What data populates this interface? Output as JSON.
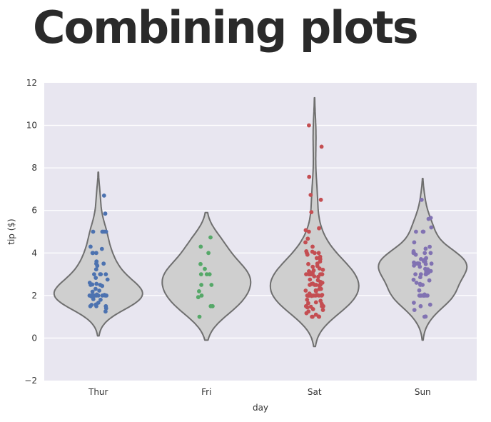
{
  "page": {
    "title": "Combining plots"
  },
  "colors": {
    "plot_background": "#e8e6f0",
    "grid": "#ffffff",
    "violin_fill": "#cfcfcf",
    "violin_stroke": "#6f6f6f"
  },
  "chart_data": {
    "type": "violin+strip",
    "xlabel": "day",
    "ylabel": "tip ($)",
    "ylim": [
      -2,
      12
    ],
    "yticks": [
      -2,
      0,
      2,
      4,
      6,
      8,
      10,
      12
    ],
    "grid": true,
    "categories": [
      "Thur",
      "Fri",
      "Sat",
      "Sun"
    ],
    "series": [
      {
        "category": "Thur",
        "color": "#4c72b0",
        "violin_extent": [
          0.1,
          7.8
        ],
        "points": [
          1.25,
          1.4,
          1.5,
          1.5,
          1.5,
          1.56,
          1.58,
          1.66,
          1.8,
          1.83,
          1.96,
          2.0,
          2.0,
          2.0,
          2.0,
          2.0,
          2.0,
          2.0,
          2.0,
          2.0,
          2.0,
          2.0,
          2.01,
          2.03,
          2.05,
          2.18,
          2.23,
          2.31,
          2.45,
          2.5,
          2.5,
          2.52,
          2.55,
          2.6,
          2.75,
          2.83,
          3.0,
          3.0,
          3.0,
          3.0,
          3.23,
          3.4,
          3.5,
          3.5,
          3.6,
          4.0,
          4.0,
          4.0,
          4.19,
          4.3,
          5.0,
          5.0,
          5.0,
          5.0,
          5.85,
          6.7
        ]
      },
      {
        "category": "Fri",
        "color": "#55a868",
        "violin_extent": [
          -0.1,
          5.9
        ],
        "points": [
          1.0,
          1.5,
          1.5,
          1.92,
          2.0,
          2.2,
          2.5,
          2.5,
          3.0,
          3.0,
          3.0,
          3.25,
          3.48,
          4.0,
          4.3,
          4.73
        ]
      },
      {
        "category": "Sat",
        "color": "#c44e52",
        "violin_extent": [
          -0.4,
          11.3
        ],
        "points": [
          1.0,
          1.0,
          1.0,
          1.01,
          1.1,
          1.17,
          1.25,
          1.32,
          1.36,
          1.44,
          1.47,
          1.5,
          1.5,
          1.5,
          1.61,
          1.64,
          1.68,
          1.75,
          1.8,
          1.98,
          2.0,
          2.0,
          2.0,
          2.0,
          2.0,
          2.0,
          2.0,
          2.0,
          2.0,
          2.01,
          2.02,
          2.03,
          2.09,
          2.2,
          2.23,
          2.24,
          2.3,
          2.31,
          2.47,
          2.5,
          2.5,
          2.5,
          2.5,
          2.54,
          2.56,
          2.6,
          2.64,
          2.72,
          2.75,
          2.88,
          2.9,
          3.0,
          3.0,
          3.0,
          3.0,
          3.0,
          3.0,
          3.0,
          3.0,
          3.0,
          3.0,
          3.06,
          3.08,
          3.14,
          3.18,
          3.21,
          3.27,
          3.35,
          3.39,
          3.48,
          3.5,
          3.6,
          3.71,
          3.76,
          3.82,
          3.92,
          4.0,
          4.0,
          4.0,
          4.06,
          4.08,
          4.3,
          4.5,
          4.67,
          5.0,
          5.07,
          5.16,
          5.92,
          6.5,
          6.73,
          7.58,
          9.0,
          10.0
        ]
      },
      {
        "category": "Sun",
        "color": "#8172b2",
        "violin_extent": [
          -0.1,
          7.5
        ],
        "points": [
          1.0,
          1.01,
          1.32,
          1.5,
          1.57,
          1.66,
          2.0,
          2.0,
          2.0,
          2.0,
          2.0,
          2.0,
          2.0,
          2.0,
          2.0,
          2.05,
          2.24,
          2.5,
          2.5,
          2.55,
          2.6,
          2.71,
          2.74,
          2.86,
          3.0,
          3.0,
          3.0,
          3.0,
          3.07,
          3.11,
          3.15,
          3.23,
          3.25,
          3.35,
          3.41,
          3.48,
          3.5,
          3.5,
          3.5,
          3.51,
          3.55,
          3.6,
          3.61,
          3.68,
          3.71,
          3.76,
          3.92,
          4.0,
          4.0,
          4.0,
          4.0,
          4.08,
          4.2,
          4.29,
          4.5,
          5.0,
          5.0,
          5.0,
          5.2,
          5.6,
          5.65,
          6.5
        ]
      }
    ]
  }
}
